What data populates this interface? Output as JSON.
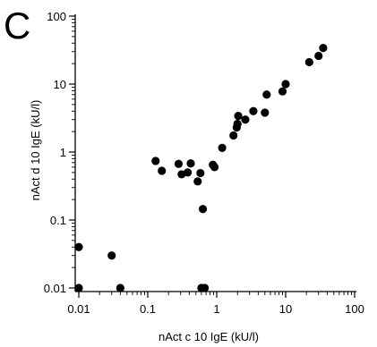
{
  "chart_data": {
    "type": "scatter",
    "panel_label": "C",
    "title": "",
    "xlabel": "nAct c 10 IgE (kU/l)",
    "ylabel": "nAct d 10 IgE (kU/l)",
    "xscale": "log",
    "yscale": "log",
    "xlim": [
      0.01,
      100
    ],
    "ylim": [
      0.01,
      100
    ],
    "xticks": [
      "0.01",
      "0.1",
      "1",
      "10",
      "100"
    ],
    "yticks": [
      "0.01",
      "0.1",
      "1",
      "10",
      "100"
    ],
    "grid": false,
    "legend": "none",
    "marker_color": "#000000",
    "points": [
      {
        "x": 0.01,
        "y": 0.01
      },
      {
        "x": 0.01,
        "y": 0.04
      },
      {
        "x": 0.03,
        "y": 0.03
      },
      {
        "x": 0.04,
        "y": 0.01
      },
      {
        "x": 0.13,
        "y": 0.74
      },
      {
        "x": 0.16,
        "y": 0.53
      },
      {
        "x": 0.28,
        "y": 0.67
      },
      {
        "x": 0.31,
        "y": 0.47
      },
      {
        "x": 0.38,
        "y": 0.5
      },
      {
        "x": 0.42,
        "y": 0.68
      },
      {
        "x": 0.53,
        "y": 0.37
      },
      {
        "x": 0.58,
        "y": 0.49
      },
      {
        "x": 0.6,
        "y": 0.01
      },
      {
        "x": 0.63,
        "y": 0.145
      },
      {
        "x": 0.67,
        "y": 0.01
      },
      {
        "x": 0.88,
        "y": 0.65
      },
      {
        "x": 0.93,
        "y": 0.6
      },
      {
        "x": 1.2,
        "y": 1.15
      },
      {
        "x": 1.75,
        "y": 1.75
      },
      {
        "x": 1.95,
        "y": 2.3
      },
      {
        "x": 2.0,
        "y": 2.6
      },
      {
        "x": 2.05,
        "y": 3.4
      },
      {
        "x": 2.6,
        "y": 3.0
      },
      {
        "x": 3.4,
        "y": 4.0
      },
      {
        "x": 5.0,
        "y": 3.8
      },
      {
        "x": 5.3,
        "y": 7.0
      },
      {
        "x": 9.0,
        "y": 7.8
      },
      {
        "x": 10.0,
        "y": 10.0
      },
      {
        "x": 22.0,
        "y": 21.0
      },
      {
        "x": 30.0,
        "y": 26.0
      },
      {
        "x": 35.0,
        "y": 34.0
      }
    ]
  }
}
